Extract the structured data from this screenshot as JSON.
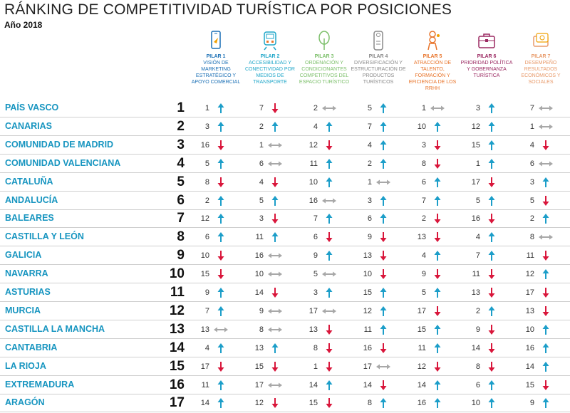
{
  "title": "RÁNKING DE COMPETITIVIDAD TURÍSTICA POR POSICIONES",
  "subtitle": "Año 2018",
  "colors": {
    "up": "#1c9ec9",
    "down": "#d9163b",
    "same": "#a8a8a8",
    "region": "#1795c0"
  },
  "pillars": [
    {
      "name": "PILAR 1",
      "desc": "VISIÓN DE MARKETING ESTRATÉGICO Y APOYO COMERCIAL",
      "icon": "smartphone-icon",
      "color": "#1a6fb5"
    },
    {
      "name": "PILAR 2",
      "desc": "ACCESIBILIDAD Y CONECTIVIDAD POR MEDIOS DE TRANSPORTE",
      "icon": "train-icon",
      "color": "#21a7c9"
    },
    {
      "name": "PILAR 3",
      "desc": "ORDENACIÓN Y CONDICIONANTES COMPETITIVOS DEL ESPACIO TURÍSTICO",
      "icon": "tree-icon",
      "color": "#7cbf6a"
    },
    {
      "name": "PILAR 4",
      "desc": "DIVERSIFICACIÓN Y ESTRUCTURACIÓN DE PRODUCTOS TURÍSTICOS",
      "icon": "door-hanger-icon",
      "color": "#8a8a8a"
    },
    {
      "name": "PILAR 5",
      "desc": "ATRACCIÓN DE TALENTO, FORMACIÓN Y EFICIENCIA DE LOS RRHH",
      "icon": "chef-icon",
      "color": "#e8742a"
    },
    {
      "name": "PILAR 6",
      "desc": "PRIORIDAD POLÍTICA Y GOBERNANZA TURÍSTICA",
      "icon": "briefcase-icon",
      "color": "#9b2a62"
    },
    {
      "name": "PILAR 7",
      "desc": "DESEMPEÑO RESULTADOS ECONÓMICOS Y SOCIALES",
      "icon": "money-card-icon",
      "color": "#e89a6a"
    }
  ],
  "chart_data": {
    "type": "table",
    "title": "RÁNKING DE COMPETITIVIDAD TURÍSTICA POR POSICIONES",
    "subtitle": "Año 2018",
    "columns": [
      "PILAR 1",
      "PILAR 2",
      "PILAR 3",
      "PILAR 4",
      "PILAR 5",
      "PILAR 6",
      "PILAR 7"
    ],
    "rows": [
      {
        "region": "PAÍS VASCO",
        "rank": "1",
        "values": [
          "1",
          "7",
          "2",
          "5",
          "1",
          "3",
          "7"
        ],
        "trends": [
          "up",
          "down",
          "same",
          "up",
          "same",
          "up",
          "same"
        ]
      },
      {
        "region": "CANARIAS",
        "rank": "2",
        "values": [
          "3",
          "2",
          "4",
          "7",
          "10",
          "12",
          "1"
        ],
        "trends": [
          "up",
          "up",
          "up",
          "up",
          "up",
          "up",
          "same"
        ]
      },
      {
        "region": "COMUNIDAD DE MADRID",
        "rank": "3",
        "values": [
          "16",
          "1",
          "12",
          "4",
          "3",
          "15",
          "4"
        ],
        "trends": [
          "down",
          "same",
          "down",
          "up",
          "down",
          "up",
          "down"
        ]
      },
      {
        "region": "COMUNIDAD VALENCIANA",
        "rank": "4",
        "values": [
          "5",
          "6",
          "11",
          "2",
          "8",
          "1",
          "6"
        ],
        "trends": [
          "up",
          "same",
          "up",
          "up",
          "down",
          "up",
          "same"
        ]
      },
      {
        "region": "CATALUÑA",
        "rank": "5",
        "values": [
          "8",
          "4",
          "10",
          "1",
          "6",
          "17",
          "3"
        ],
        "trends": [
          "down",
          "down",
          "up",
          "same",
          "up",
          "down",
          "up"
        ]
      },
      {
        "region": "ANDALUCÍA",
        "rank": "6",
        "values": [
          "2",
          "5",
          "16",
          "3",
          "7",
          "5",
          "5"
        ],
        "trends": [
          "up",
          "up",
          "same",
          "up",
          "up",
          "up",
          "down"
        ]
      },
      {
        "region": "BALEARES",
        "rank": "7",
        "values": [
          "12",
          "3",
          "7",
          "6",
          "2",
          "16",
          "2"
        ],
        "trends": [
          "up",
          "down",
          "up",
          "up",
          "down",
          "down",
          "up"
        ]
      },
      {
        "region": "CASTILLA Y LEÓN",
        "rank": "8",
        "values": [
          "6",
          "11",
          "6",
          "9",
          "13",
          "4",
          "8"
        ],
        "trends": [
          "up",
          "up",
          "down",
          "down",
          "down",
          "up",
          "same"
        ]
      },
      {
        "region": "GALICIA",
        "rank": "9",
        "values": [
          "10",
          "16",
          "9",
          "13",
          "4",
          "7",
          "11"
        ],
        "trends": [
          "down",
          "same",
          "up",
          "down",
          "up",
          "up",
          "down"
        ]
      },
      {
        "region": "NAVARRA",
        "rank": "10",
        "values": [
          "15",
          "10",
          "5",
          "10",
          "9",
          "11",
          "12"
        ],
        "trends": [
          "down",
          "same",
          "same",
          "down",
          "down",
          "down",
          "up"
        ]
      },
      {
        "region": "ASTURIAS",
        "rank": "11",
        "values": [
          "9",
          "14",
          "3",
          "15",
          "5",
          "13",
          "17"
        ],
        "trends": [
          "up",
          "down",
          "up",
          "up",
          "up",
          "down",
          "down"
        ]
      },
      {
        "region": "MURCIA",
        "rank": "12",
        "values": [
          "7",
          "9",
          "17",
          "12",
          "17",
          "2",
          "13"
        ],
        "trends": [
          "up",
          "same",
          "same",
          "up",
          "down",
          "up",
          "down"
        ]
      },
      {
        "region": "CASTILLA LA MANCHA",
        "rank": "13",
        "values": [
          "13",
          "8",
          "13",
          "11",
          "15",
          "9",
          "10"
        ],
        "trends": [
          "same",
          "same",
          "down",
          "up",
          "up",
          "down",
          "up"
        ]
      },
      {
        "region": "CANTABRIA",
        "rank": "14",
        "values": [
          "4",
          "13",
          "8",
          "16",
          "11",
          "14",
          "16"
        ],
        "trends": [
          "up",
          "up",
          "down",
          "down",
          "up",
          "down",
          "up"
        ]
      },
      {
        "region": "LA RIOJA",
        "rank": "15",
        "values": [
          "17",
          "15",
          "1",
          "17",
          "12",
          "8",
          "14"
        ],
        "trends": [
          "down",
          "down",
          "down",
          "same",
          "down",
          "down",
          "up"
        ]
      },
      {
        "region": "EXTREMADURA",
        "rank": "16",
        "values": [
          "11",
          "17",
          "14",
          "14",
          "14",
          "6",
          "15"
        ],
        "trends": [
          "up",
          "same",
          "up",
          "down",
          "up",
          "up",
          "down"
        ]
      },
      {
        "region": "ARAGÓN",
        "rank": "17",
        "values": [
          "14",
          "12",
          "15",
          "8",
          "16",
          "10",
          "9"
        ],
        "trends": [
          "up",
          "down",
          "down",
          "up",
          "up",
          "up",
          "up"
        ]
      }
    ]
  }
}
